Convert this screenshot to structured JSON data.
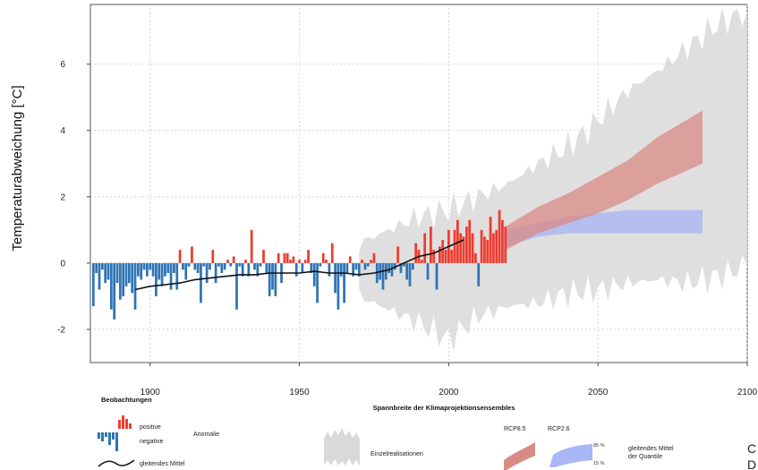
{
  "chart_data": {
    "type": "bar",
    "title": "",
    "xlabel": "",
    "ylabel": "Temperaturabweichung [°C]",
    "xlim": [
      1880,
      2100
    ],
    "ylim": [
      -3,
      7.8
    ],
    "x_ticks": [
      1900,
      1950,
      2000,
      2050,
      2100
    ],
    "y_ticks": [
      -2,
      0,
      2,
      4,
      6
    ],
    "grid": true,
    "legend_position": "bottom",
    "colors": {
      "positive": "#ee3b2f",
      "negative": "#2f73b5",
      "rcp85": "#d98a86",
      "rcp26": "#a9b7f4",
      "ensemble": "#d9d9d9",
      "mean_line": "#111111"
    },
    "observations": {
      "years": [
        1881,
        1882,
        1883,
        1884,
        1885,
        1886,
        1887,
        1888,
        1889,
        1890,
        1891,
        1892,
        1893,
        1894,
        1895,
        1896,
        1897,
        1898,
        1899,
        1900,
        1901,
        1902,
        1903,
        1904,
        1905,
        1906,
        1907,
        1908,
        1909,
        1910,
        1911,
        1912,
        1913,
        1914,
        1915,
        1916,
        1917,
        1918,
        1919,
        1920,
        1921,
        1922,
        1923,
        1924,
        1925,
        1926,
        1927,
        1928,
        1929,
        1930,
        1931,
        1932,
        1933,
        1934,
        1935,
        1936,
        1937,
        1938,
        1939,
        1940,
        1941,
        1942,
        1943,
        1944,
        1945,
        1946,
        1947,
        1948,
        1949,
        1950,
        1951,
        1952,
        1953,
        1954,
        1955,
        1956,
        1957,
        1958,
        1959,
        1960,
        1961,
        1962,
        1963,
        1964,
        1965,
        1966,
        1967,
        1968,
        1969,
        1970,
        1971,
        1972,
        1973,
        1974,
        1975,
        1976,
        1977,
        1978,
        1979,
        1980,
        1981,
        1982,
        1983,
        1984,
        1985,
        1986,
        1987,
        1988,
        1989,
        1990,
        1991,
        1992,
        1993,
        1994,
        1995,
        1996,
        1997,
        1998,
        1999,
        2000,
        2001,
        2002,
        2003,
        2004,
        2005,
        2006,
        2007,
        2008,
        2009,
        2010,
        2011,
        2012,
        2013,
        2014,
        2015,
        2016,
        2017,
        2018,
        2019
      ],
      "anomaly": [
        -1.3,
        -0.3,
        -0.8,
        -0.2,
        -0.6,
        -0.5,
        -1.4,
        -1.7,
        -0.6,
        -1.1,
        -1.0,
        -0.7,
        -0.6,
        -0.9,
        -1.4,
        -0.4,
        -0.5,
        -0.2,
        -0.4,
        -0.2,
        -0.4,
        -1.0,
        -0.5,
        -0.7,
        -0.4,
        -0.3,
        -0.8,
        -0.3,
        -0.8,
        0.4,
        -0.2,
        -0.5,
        -0.1,
        0.5,
        -0.2,
        -0.3,
        -1.2,
        -0.1,
        -0.6,
        -0.2,
        0.4,
        -0.6,
        -0.1,
        -0.3,
        -0.2,
        0.1,
        -0.1,
        0.2,
        -1.4,
        -0.1,
        -0.4,
        0.1,
        -0.4,
        1.0,
        -0.2,
        -0.4,
        -0.1,
        0.4,
        -0.3,
        -1.0,
        -0.8,
        -1.0,
        0.3,
        -0.6,
        0.3,
        0.3,
        0.1,
        0.2,
        -0.4,
        0.1,
        -0.3,
        0.1,
        0.4,
        -0.3,
        -0.7,
        -1.2,
        -0.1,
        0.3,
        0.1,
        -0.4,
        0.6,
        -0.9,
        -1.4,
        -0.4,
        -1.2,
        -0.3,
        0.2,
        -0.4,
        -0.2,
        -0.4,
        0.1,
        -0.2,
        -0.1,
        0.1,
        0.3,
        -0.6,
        -0.5,
        -0.8,
        -0.5,
        -0.3,
        -0.4,
        -0.2,
        0.5,
        -0.3,
        -0.1,
        -0.5,
        -0.7,
        -0.2,
        0.6,
        0.4,
        0.1,
        0.9,
        -0.5,
        1.1,
        0.4,
        -0.8,
        0.5,
        0.7,
        0.4,
        1.0,
        0.4,
        1.0,
        1.3,
        0.9,
        0.8,
        1.1,
        1.3,
        0.9,
        0.3,
        -0.7,
        1.0,
        0.8,
        0.7,
        1.4,
        0.9,
        1.0,
        1.6,
        1.3,
        1.1,
        1.9,
        1.7
      ]
    },
    "running_mean": {
      "x": [
        1895,
        1900,
        1905,
        1910,
        1915,
        1920,
        1925,
        1930,
        1935,
        1940,
        1945,
        1950,
        1955,
        1960,
        1965,
        1970,
        1975,
        1980,
        1985,
        1990,
        1995,
        2000,
        2005
      ],
      "y": [
        -0.8,
        -0.7,
        -0.65,
        -0.6,
        -0.5,
        -0.45,
        -0.4,
        -0.35,
        -0.35,
        -0.3,
        -0.3,
        -0.3,
        -0.25,
        -0.3,
        -0.3,
        -0.35,
        -0.3,
        -0.2,
        0.0,
        0.2,
        0.3,
        0.5,
        0.7
      ]
    },
    "ensemble_range": {
      "x": [
        1970,
        1980,
        1990,
        2000,
        2010,
        2020,
        2030,
        2040,
        2050,
        2060,
        2070,
        2080,
        2090,
        2100
      ],
      "low": [
        -1.0,
        -1.4,
        -1.8,
        -2.3,
        -1.6,
        -1.3,
        -1.2,
        -0.9,
        -0.8,
        -0.6,
        -0.5,
        -0.6,
        -0.4,
        -0.1
      ],
      "high": [
        0.6,
        1.0,
        1.4,
        1.6,
        2.0,
        2.4,
        3.0,
        3.5,
        4.3,
        5.2,
        5.8,
        6.5,
        7.2,
        7.6
      ]
    },
    "rcp85_band": {
      "x": [
        2019,
        2030,
        2040,
        2050,
        2060,
        2070,
        2085
      ],
      "q15": [
        0.4,
        0.9,
        1.2,
        1.5,
        1.9,
        2.4,
        3.0
      ],
      "q85": [
        1.1,
        1.7,
        2.1,
        2.6,
        3.1,
        3.8,
        4.6
      ]
    },
    "rcp26_band": {
      "x": [
        2019,
        2030,
        2040,
        2050,
        2060,
        2070,
        2085
      ],
      "q15": [
        0.5,
        0.8,
        0.9,
        0.9,
        0.9,
        0.9,
        0.9
      ],
      "q85": [
        1.0,
        1.2,
        1.4,
        1.5,
        1.6,
        1.6,
        1.6
      ]
    },
    "legend": {
      "obs_title": "Beobachtungen",
      "positive": "positive",
      "negative": "negative",
      "anomaly": "Anomalie",
      "mean": "gleitendes Mittel",
      "range_title": "Spannbreite der Klimaprojektionsensembles",
      "realizations": "Einzelrealisationen",
      "rcp85": "RCP8.5",
      "rcp26": "RCP2.6",
      "q85": "85 %",
      "q15": "15 %",
      "quantile_mean_line1": "gleitendes Mittel",
      "quantile_mean_line2": "der Quantile"
    },
    "edge_text": [
      "C",
      "D"
    ]
  }
}
